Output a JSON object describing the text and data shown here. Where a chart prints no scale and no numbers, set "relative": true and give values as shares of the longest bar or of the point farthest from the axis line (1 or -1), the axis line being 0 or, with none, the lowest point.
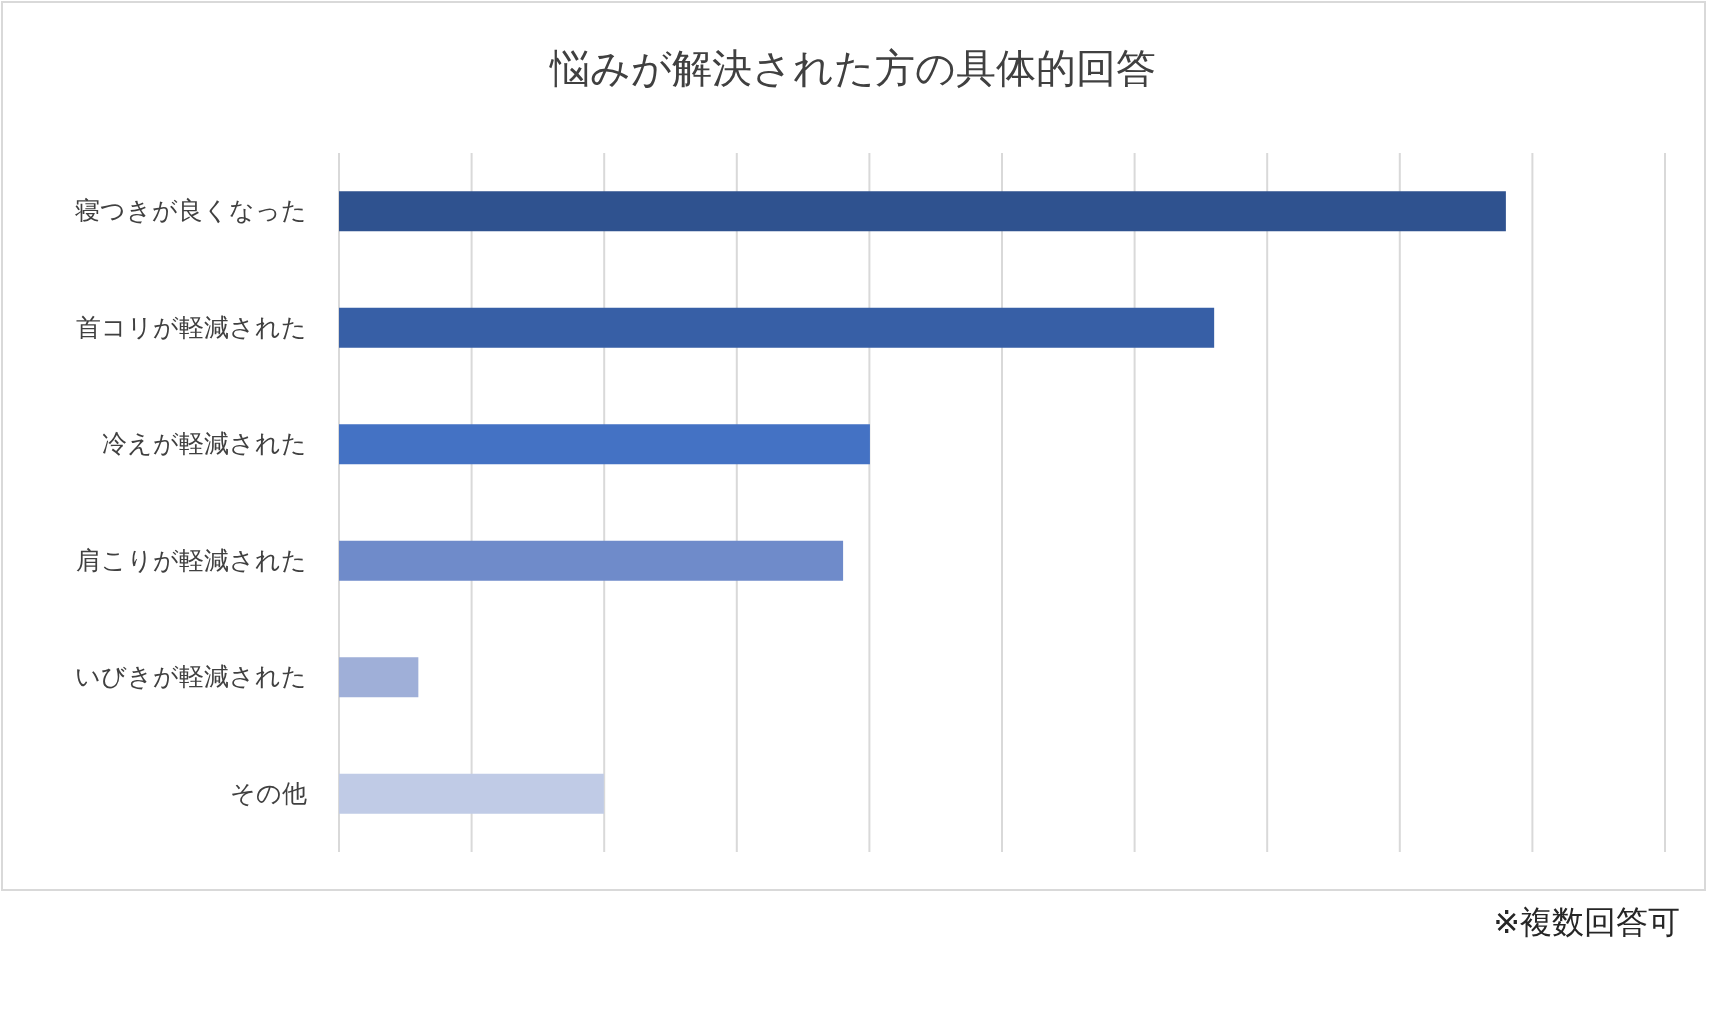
{
  "chart_data": {
    "type": "bar",
    "orientation": "horizontal",
    "relative": true,
    "title": "悩みが解決された方の具体的回答",
    "categories": [
      "寝つきが良くなった",
      "首コリが軽減された",
      "冷えが軽減された",
      "肩こりが軽減された",
      "いびきが軽減された",
      "その他"
    ],
    "values": [
      1,
      0.75,
      0.455,
      0.432,
      0.068,
      0.227
    ],
    "colors": [
      "#2f528f",
      "#375fa6",
      "#4472c4",
      "#6f8bca",
      "#9fafd8",
      "#c0cbe6"
    ],
    "grid": "x",
    "annotations": [
      "※複数回答可"
    ]
  }
}
